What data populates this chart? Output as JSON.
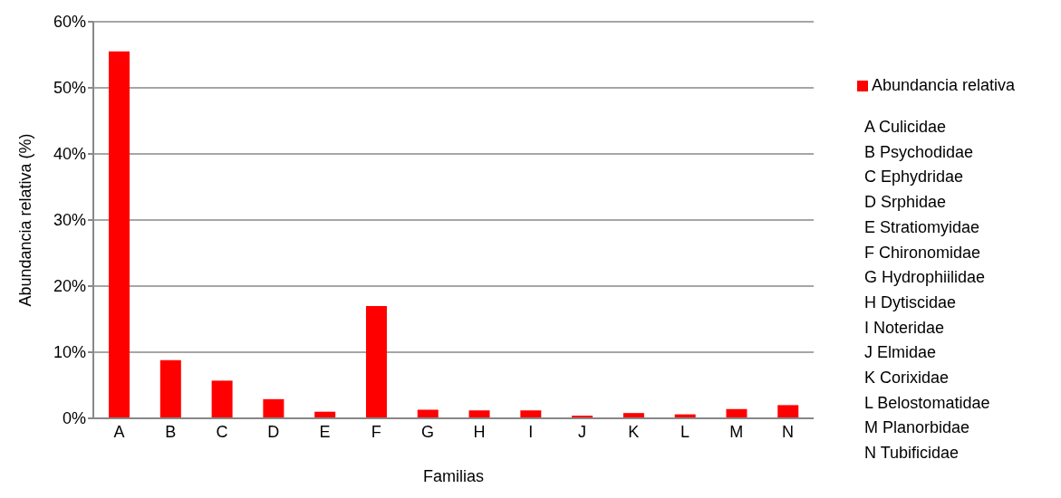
{
  "chart_data": {
    "type": "bar",
    "xlabel": "Familias",
    "ylabel": "Abundancia relativa (%)",
    "categories": [
      "A",
      "B",
      "C",
      "D",
      "E",
      "F",
      "G",
      "H",
      "I",
      "J",
      "K",
      "L",
      "M",
      "N"
    ],
    "series": [
      {
        "name": "Abundancia relativa",
        "color": "#ff0000",
        "values": [
          55.5,
          8.8,
          5.7,
          2.9,
          1.0,
          17.0,
          1.3,
          1.2,
          1.2,
          0.4,
          0.8,
          0.6,
          1.4,
          2.0
        ]
      }
    ],
    "ylim": [
      0,
      60
    ],
    "yticks": [
      {
        "value": 0,
        "label": "0%"
      },
      {
        "value": 10,
        "label": "10%"
      },
      {
        "value": 20,
        "label": "20%"
      },
      {
        "value": 30,
        "label": "30%"
      },
      {
        "value": 40,
        "label": "40%"
      },
      {
        "value": 50,
        "label": "50%"
      },
      {
        "value": 60,
        "label": "60%"
      }
    ],
    "grid": "y",
    "legend": "top right",
    "annotations": [
      "A Culicidae",
      "B Psychodidae",
      "C Ephydridae",
      "D Srphidae",
      "E Stratiomyidae",
      "F Chironomidae",
      "G Hydrophiilidae",
      "H Dytiscidae",
      "I Noteridae",
      "J Elmidae",
      "K Corixidae",
      "L Belostomatidae",
      "M Planorbidae",
      "N Tubificidae"
    ]
  }
}
